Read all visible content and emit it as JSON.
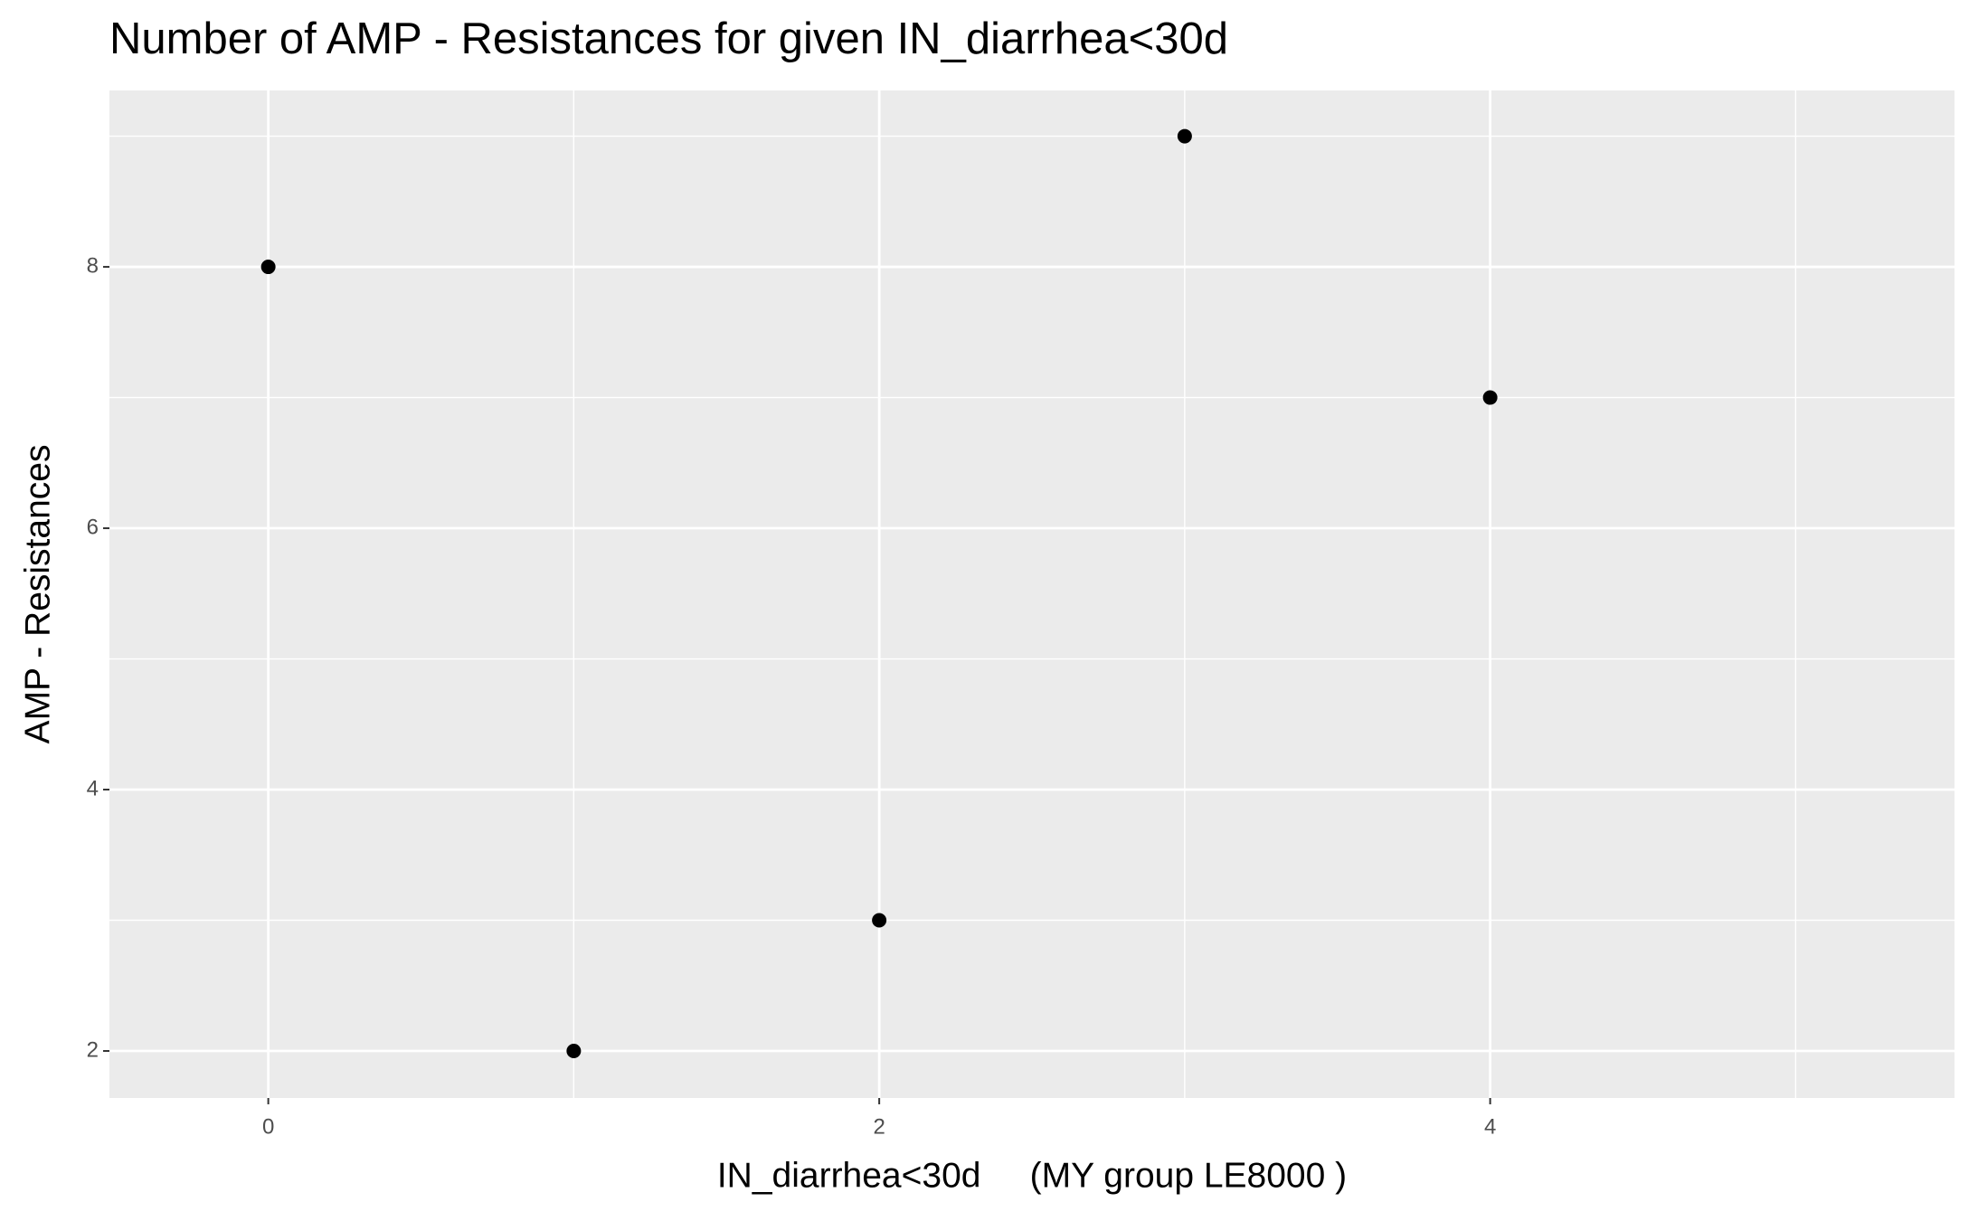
{
  "chart_data": {
    "type": "scatter",
    "title": "Number of AMP - Resistances for given IN_diarrhea<30d",
    "x_label": "IN_diarrhea<30d     (MY group LE8000 )",
    "y_label": "AMP - Resistances",
    "x": [
      0,
      1,
      2,
      3,
      4
    ],
    "series": [
      {
        "name": "AMP - Resistances",
        "color": "#000000",
        "values": [
          8,
          2,
          3,
          9,
          7
        ]
      }
    ],
    "xlim": [
      -0.52,
      5.52
    ],
    "xticks": [
      0,
      2,
      4
    ],
    "ylim": [
      1.64,
      9.35
    ],
    "yticks": [
      2,
      4,
      6,
      8
    ],
    "grid": true
  }
}
